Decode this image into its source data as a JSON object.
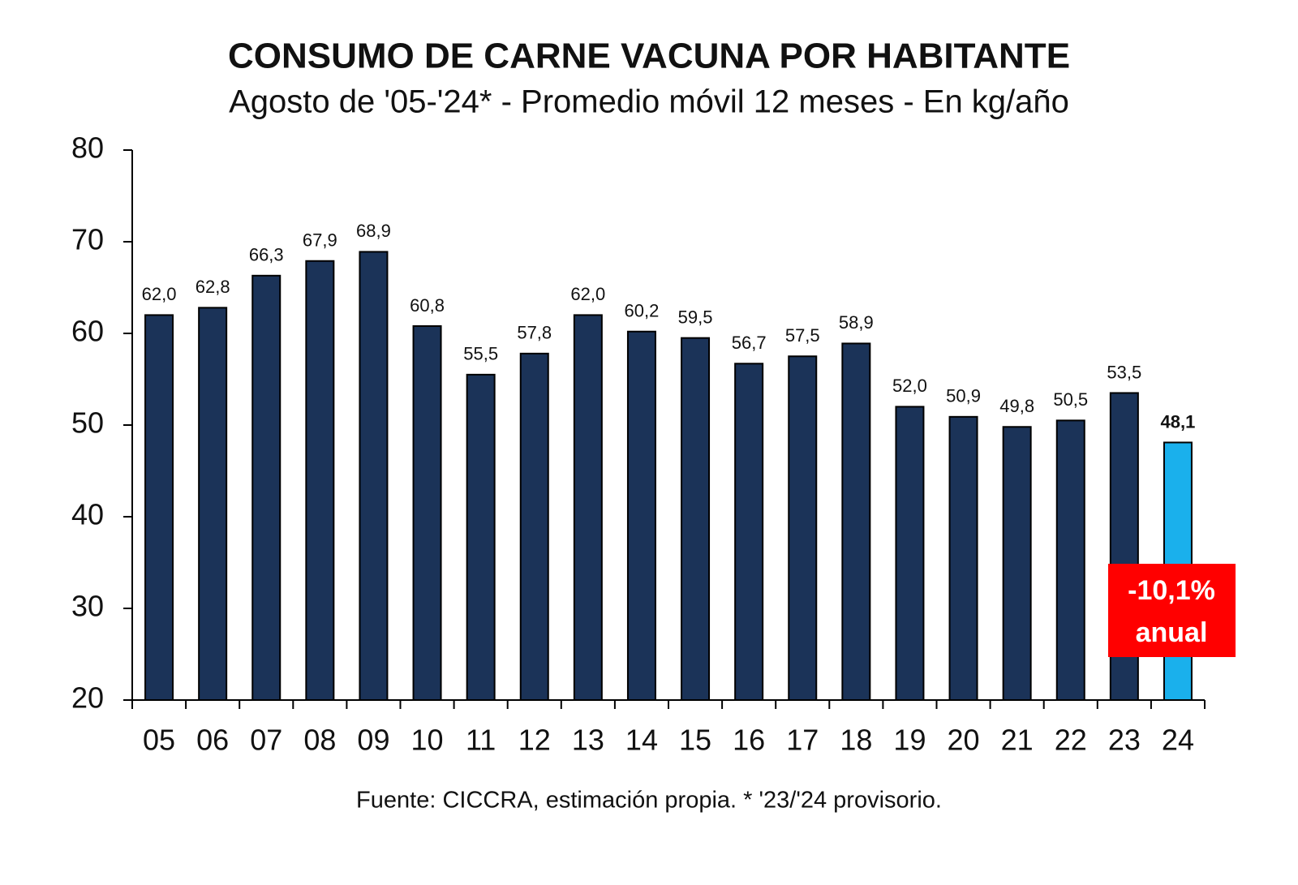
{
  "chart_data": {
    "type": "bar",
    "title": "CONSUMO DE CARNE VACUNA POR HABITANTE",
    "subtitle": "Agosto de '05-'24* - Promedio móvil 12 meses -  En kg/año",
    "categories": [
      "05",
      "06",
      "07",
      "08",
      "09",
      "10",
      "11",
      "12",
      "13",
      "14",
      "15",
      "16",
      "17",
      "18",
      "19",
      "20",
      "21",
      "22",
      "23",
      "24"
    ],
    "values": [
      62.0,
      62.8,
      66.3,
      67.9,
      68.9,
      60.8,
      55.5,
      57.8,
      62.0,
      60.2,
      59.5,
      56.7,
      57.5,
      58.9,
      52.0,
      50.9,
      49.8,
      50.5,
      53.5,
      48.1
    ],
    "value_labels": [
      "62,0",
      "62,8",
      "66,3",
      "67,9",
      "68,9",
      "60,8",
      "55,5",
      "57,8",
      "62,0",
      "60,2",
      "59,5",
      "56,7",
      "57,5",
      "58,9",
      "52,0",
      "50,9",
      "49,8",
      "50,5",
      "53,5",
      "48,1"
    ],
    "colors": [
      "#1b3358",
      "#1b3358",
      "#1b3358",
      "#1b3358",
      "#1b3358",
      "#1b3358",
      "#1b3358",
      "#1b3358",
      "#1b3358",
      "#1b3358",
      "#1b3358",
      "#1b3358",
      "#1b3358",
      "#1b3358",
      "#1b3358",
      "#1b3358",
      "#1b3358",
      "#1b3358",
      "#1b3358",
      "#1ab0ec"
    ],
    "ylim": [
      20,
      80
    ],
    "yticks": [
      20,
      30,
      40,
      50,
      60,
      70,
      80
    ],
    "annotation": [
      "-10,1%",
      "anual"
    ],
    "annotation_color": "#ff0000",
    "source": "Fuente: CICCRA, estimación propia. * '23/'24 provisorio."
  }
}
